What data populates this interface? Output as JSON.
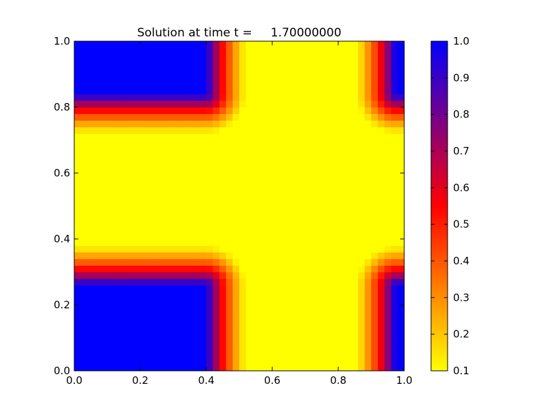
{
  "chart_data": {
    "type": "heatmap",
    "title": "Solution at time t =     1.70000000",
    "xlabel": "",
    "ylabel": "",
    "xlim": [
      0.0,
      1.0
    ],
    "ylim": [
      0.0,
      1.0
    ],
    "x_ticks": [
      "0.0",
      "0.2",
      "0.4",
      "0.6",
      "0.8",
      "1.0"
    ],
    "y_ticks": [
      "0.0",
      "0.2",
      "0.4",
      "0.6",
      "0.8",
      "1.0"
    ],
    "grid": false,
    "grid_resolution": [
      50,
      50
    ],
    "colorbar": {
      "range": [
        0.1,
        1.0
      ],
      "ticks": [
        "0.1",
        "0.2",
        "0.3",
        "0.4",
        "0.5",
        "0.6",
        "0.7",
        "0.8",
        "0.9",
        "1.0"
      ],
      "colors": [
        "#ffff00",
        "#ff0000",
        "#0000ff"
      ]
    },
    "features": {
      "background_value": 0.1,
      "high_value": 1.0,
      "high_regions": [
        {
          "x": [
            0.0,
            0.4
          ],
          "y": [
            0.0,
            0.26
          ]
        },
        {
          "x": [
            0.0,
            0.4
          ],
          "y": [
            0.84,
            1.0
          ]
        },
        {
          "x": [
            0.975,
            1.0
          ],
          "y": [
            0.0,
            0.26
          ]
        },
        {
          "x": [
            0.975,
            1.0
          ],
          "y": [
            0.84,
            1.0
          ]
        }
      ],
      "transition_width": 0.12
    }
  }
}
